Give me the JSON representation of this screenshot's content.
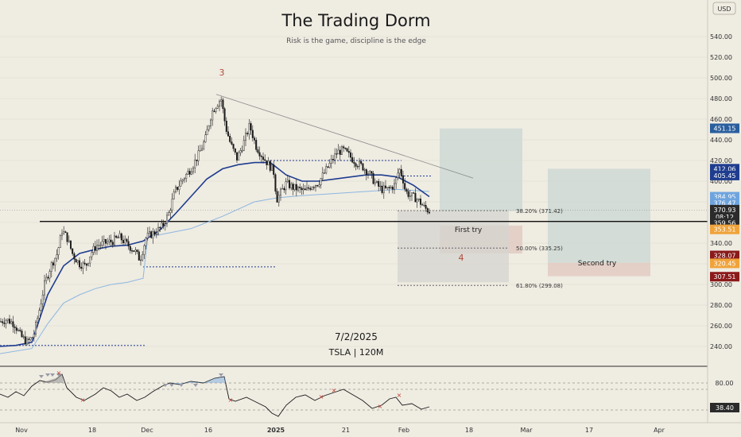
{
  "header": {
    "title": "The Trading Dorm",
    "subtitle": "Risk is the game, discipline is the edge",
    "currency": "USD"
  },
  "overlay": {
    "date": "7/2/2025",
    "symbol": "TSLA | 120M"
  },
  "annotations": {
    "wave3": "3",
    "wave4": "4",
    "first_try": "First try",
    "second_try": "Second try"
  },
  "colors": {
    "background": "#efece2",
    "candle": "#1a1a1a",
    "vwap_dark": "#1f3d8f",
    "vwap_light": "#8db7e0",
    "badge_blue": "#2a5f9e",
    "badge_navy": "#1f3d8f",
    "badge_lightblue": "#6ea4de",
    "badge_orange": "#f0a33a",
    "badge_darkred": "#8b1a1a",
    "badge_red": "#c0392b",
    "badge_dark": "#2b2b2b",
    "fib_text": "#333333"
  },
  "chart_data": {
    "type": "candlestick",
    "y_range": [
      225,
      565
    ],
    "y_ticks": [
      540,
      520,
      500,
      480,
      460,
      440,
      420,
      400,
      380,
      360,
      340,
      320,
      300,
      280,
      260,
      240
    ],
    "x_ticks": [
      {
        "label": "Nov",
        "bold": false
      },
      {
        "label": "18",
        "bold": false
      },
      {
        "label": "Dec",
        "bold": false
      },
      {
        "label": "16",
        "bold": false
      },
      {
        "label": "2025",
        "bold": true
      },
      {
        "label": "21",
        "bold": false
      },
      {
        "label": "Feb",
        "bold": false
      },
      {
        "label": "18",
        "bold": false
      },
      {
        "label": "Mar",
        "bold": false
      },
      {
        "label": "17",
        "bold": false
      },
      {
        "label": "Apr",
        "bold": false
      }
    ],
    "price_path": [
      [
        0,
        264
      ],
      [
        8,
        266
      ],
      [
        18,
        262
      ],
      [
        26,
        250
      ],
      [
        34,
        244
      ],
      [
        42,
        250
      ],
      [
        48,
        270
      ],
      [
        56,
        300
      ],
      [
        64,
        318
      ],
      [
        72,
        330
      ],
      [
        78,
        352
      ],
      [
        84,
        346
      ],
      [
        92,
        328
      ],
      [
        100,
        320
      ],
      [
        108,
        318
      ],
      [
        114,
        330
      ],
      [
        122,
        338
      ],
      [
        132,
        340
      ],
      [
        142,
        342
      ],
      [
        150,
        346
      ],
      [
        158,
        340
      ],
      [
        164,
        336
      ],
      [
        170,
        332
      ],
      [
        176,
        324
      ],
      [
        184,
        346
      ],
      [
        194,
        350
      ],
      [
        204,
        356
      ],
      [
        212,
        368
      ],
      [
        220,
        390
      ],
      [
        230,
        402
      ],
      [
        240,
        412
      ],
      [
        250,
        426
      ],
      [
        258,
        440
      ],
      [
        266,
        466
      ],
      [
        272,
        474
      ],
      [
        278,
        480
      ],
      [
        284,
        452
      ],
      [
        290,
        436
      ],
      [
        298,
        422
      ],
      [
        306,
        436
      ],
      [
        314,
        454
      ],
      [
        322,
        434
      ],
      [
        330,
        424
      ],
      [
        338,
        416
      ],
      [
        344,
        410
      ],
      [
        348,
        382
      ],
      [
        354,
        390
      ],
      [
        360,
        398
      ],
      [
        368,
        394
      ],
      [
        376,
        392
      ],
      [
        384,
        390
      ],
      [
        392,
        396
      ],
      [
        400,
        398
      ],
      [
        408,
        408
      ],
      [
        416,
        418
      ],
      [
        424,
        428
      ],
      [
        432,
        430
      ],
      [
        440,
        424
      ],
      [
        448,
        418
      ],
      [
        456,
        414
      ],
      [
        464,
        408
      ],
      [
        472,
        398
      ],
      [
        480,
        392
      ],
      [
        488,
        392
      ],
      [
        496,
        396
      ],
      [
        502,
        412
      ],
      [
        506,
        405
      ],
      [
        510,
        390
      ],
      [
        516,
        386
      ],
      [
        522,
        384
      ],
      [
        528,
        380
      ],
      [
        534,
        374
      ],
      [
        540,
        371
      ]
    ],
    "ema_fast": [
      [
        0,
        240
      ],
      [
        20,
        241
      ],
      [
        40,
        244
      ],
      [
        60,
        290
      ],
      [
        80,
        318
      ],
      [
        100,
        330
      ],
      [
        120,
        334
      ],
      [
        140,
        337
      ],
      [
        160,
        338
      ],
      [
        180,
        342
      ],
      [
        200,
        352
      ],
      [
        220,
        368
      ],
      [
        240,
        385
      ],
      [
        260,
        402
      ],
      [
        280,
        412
      ],
      [
        300,
        416
      ],
      [
        320,
        418
      ],
      [
        340,
        418
      ],
      [
        360,
        406
      ],
      [
        380,
        400
      ],
      [
        400,
        400
      ],
      [
        420,
        402
      ],
      [
        440,
        404
      ],
      [
        460,
        406
      ],
      [
        480,
        406
      ],
      [
        500,
        404
      ],
      [
        520,
        396
      ],
      [
        540,
        385
      ]
    ],
    "ema_slow": [
      [
        0,
        233
      ],
      [
        40,
        238
      ],
      [
        60,
        262
      ],
      [
        80,
        282
      ],
      [
        100,
        290
      ],
      [
        120,
        296
      ],
      [
        140,
        300
      ],
      [
        160,
        302
      ],
      [
        180,
        306
      ],
      [
        186,
        347
      ],
      [
        200,
        348
      ],
      [
        240,
        354
      ],
      [
        280,
        366
      ],
      [
        320,
        380
      ],
      [
        350,
        384
      ],
      [
        380,
        386
      ],
      [
        420,
        388
      ],
      [
        460,
        390
      ],
      [
        500,
        392
      ],
      [
        540,
        390
      ]
    ],
    "horizontal_levels": [
      {
        "price": 361,
        "from_x": 50,
        "to_x": 890,
        "style": "solid"
      },
      {
        "price": 420,
        "from_x": 340,
        "to_x": 505,
        "style": "dashed"
      },
      {
        "price": 405,
        "from_x": 500,
        "to_x": 542,
        "style": "dashed"
      },
      {
        "price": 317,
        "from_x": 180,
        "to_x": 346,
        "style": "dashed"
      },
      {
        "price": 241,
        "from_x": 0,
        "to_x": 182,
        "style": "dashed"
      }
    ],
    "trendline": {
      "from": [
        272,
        484
      ],
      "to": [
        595,
        403
      ]
    },
    "fib_levels": [
      {
        "label": "38.20% (371.42)",
        "price": 371.42
      },
      {
        "label": "50.00% (335.25)",
        "price": 335.25
      },
      {
        "label": "61.80% (299.08)",
        "price": 299.08
      }
    ],
    "boxes": [
      {
        "x1": 553,
        "x2": 657,
        "price_top": 451,
        "price_bottom": 371,
        "fill": "#c9d7d2"
      },
      {
        "x1": 553,
        "x2": 657,
        "price_top": 357,
        "price_bottom": 330,
        "fill": "#e0c7bd"
      },
      {
        "x1": 500,
        "x2": 640,
        "price_top": 371,
        "price_bottom": 302,
        "fill": "#d6d4cf"
      },
      {
        "x1": 689,
        "x2": 818,
        "price_top": 412,
        "price_bottom": 321,
        "fill": "#c9d7d2"
      },
      {
        "x1": 689,
        "x2": 818,
        "price_top": 321,
        "price_bottom": 308,
        "fill": "#e0c7bd"
      }
    ],
    "price_badges": [
      {
        "text": "451.15",
        "price": 451.15,
        "bg": "#2a5f9e",
        "fg": "#ffffff"
      },
      {
        "text": "412.06",
        "price": 412.06,
        "bg": "#1f3d8f",
        "fg": "#ffffff"
      },
      {
        "text": "405.45",
        "price": 405.45,
        "bg": "#1f3d8f",
        "fg": "#ffffff"
      },
      {
        "text": "384.95",
        "price": 384.95,
        "bg": "#6ea4de",
        "fg": "#ffffff"
      },
      {
        "text": "376.47",
        "price": 378.8,
        "bg": "#6ea4de",
        "fg": "#ffffff"
      },
      {
        "text": "370.93",
        "price": 372.4,
        "bg": "#2b2b2b",
        "fg": "#ffffff"
      },
      {
        "text": "08:12",
        "price": 365.4,
        "bg": "#2b2b2b",
        "fg": "#ffffff"
      },
      {
        "text": "359.56",
        "price": 359.5,
        "bg": "#2b2b2b",
        "fg": "#ffffff"
      },
      {
        "text": "353.51",
        "price": 353.3,
        "bg": "#f0a33a",
        "fg": "#ffffff"
      },
      {
        "text": "328.07",
        "price": 328.07,
        "bg": "#8b1a1a",
        "fg": "#ffffff"
      },
      {
        "text": "320.45",
        "price": 320.45,
        "bg": "#f0a33a",
        "fg": "#ffffff"
      },
      {
        "text": "307.51",
        "price": 307.51,
        "bg": "#8b1a1a",
        "fg": "#ffffff"
      }
    ],
    "oscillator": {
      "y_tick": "80.00",
      "current_badge": "38.40",
      "path": [
        [
          0,
          496
        ],
        [
          10,
          500
        ],
        [
          20,
          493
        ],
        [
          30,
          498
        ],
        [
          40,
          486
        ],
        [
          50,
          479
        ],
        [
          60,
          481
        ],
        [
          70,
          478
        ],
        [
          78,
          471
        ],
        [
          84,
          488
        ],
        [
          96,
          500
        ],
        [
          106,
          504
        ],
        [
          120,
          496
        ],
        [
          130,
          488
        ],
        [
          140,
          492
        ],
        [
          150,
          500
        ],
        [
          160,
          496
        ],
        [
          172,
          504
        ],
        [
          182,
          500
        ],
        [
          192,
          493
        ],
        [
          204,
          486
        ],
        [
          214,
          482
        ],
        [
          226,
          484
        ],
        [
          240,
          480
        ],
        [
          256,
          482
        ],
        [
          270,
          476
        ],
        [
          282,
          474
        ],
        [
          288,
          502
        ],
        [
          296,
          505
        ],
        [
          310,
          500
        ],
        [
          322,
          506
        ],
        [
          334,
          512
        ],
        [
          342,
          520
        ],
        [
          350,
          524
        ],
        [
          360,
          510
        ],
        [
          372,
          500
        ],
        [
          384,
          497
        ],
        [
          396,
          504
        ],
        [
          408,
          498
        ],
        [
          420,
          494
        ],
        [
          432,
          490
        ],
        [
          444,
          497
        ],
        [
          456,
          504
        ],
        [
          468,
          514
        ],
        [
          480,
          510
        ],
        [
          490,
          502
        ],
        [
          498,
          500
        ],
        [
          506,
          510
        ],
        [
          518,
          508
        ],
        [
          530,
          515
        ],
        [
          540,
          512
        ]
      ]
    }
  }
}
